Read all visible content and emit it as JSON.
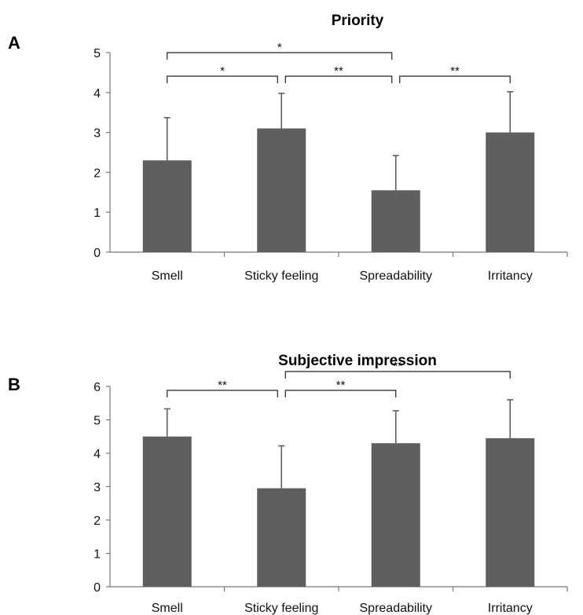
{
  "colors": {
    "bar": "#5f5f5f",
    "axis": "#777777",
    "text": "#111111"
  },
  "chart_data": [
    {
      "panel_label": "A",
      "type": "bar",
      "title": "Priority",
      "categories": [
        "Smell",
        "Sticky feeling",
        "Spreadability",
        "Irritancy"
      ],
      "values": [
        2.3,
        3.1,
        1.55,
        3.0
      ],
      "error_upper": [
        1.07,
        0.88,
        0.87,
        1.02
      ],
      "ylim": [
        0,
        5
      ],
      "yticks": [
        "0",
        "1",
        "2",
        "3",
        "4",
        "5"
      ],
      "xlabel": "",
      "ylabel": "",
      "grid": false,
      "significance": [
        {
          "from": 0,
          "to": 2,
          "label": "*"
        },
        {
          "from": 0,
          "to": 1,
          "label": "*"
        },
        {
          "from": 1,
          "to": 2,
          "label": "**"
        },
        {
          "from": 2,
          "to": 3,
          "label": "**"
        }
      ]
    },
    {
      "panel_label": "B",
      "type": "bar",
      "title": "Subjective impression",
      "categories": [
        "Smell",
        "Sticky feeling",
        "Spreadability",
        "Irritancy"
      ],
      "values": [
        4.5,
        2.95,
        4.3,
        4.45
      ],
      "error_upper": [
        0.83,
        1.27,
        0.97,
        1.15
      ],
      "ylim": [
        0,
        6
      ],
      "yticks": [
        "0",
        "1",
        "2",
        "3",
        "4",
        "5",
        "6"
      ],
      "xlabel": "",
      "ylabel": "",
      "grid": false,
      "significance": [
        {
          "from": 1,
          "to": 3,
          "label": "**"
        },
        {
          "from": 0,
          "to": 1,
          "label": "**"
        },
        {
          "from": 1,
          "to": 2,
          "label": "**"
        }
      ]
    }
  ]
}
